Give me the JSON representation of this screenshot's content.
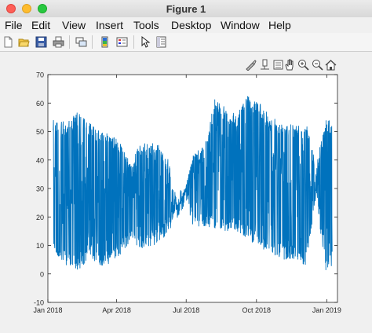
{
  "window": {
    "title": "Figure 1"
  },
  "menubar": {
    "items": [
      "File",
      "Edit",
      "View",
      "Insert",
      "Tools",
      "Desktop",
      "Window",
      "Help"
    ]
  },
  "toolbar": {
    "icons": [
      "new-figure-icon",
      "open-file-icon",
      "save-icon",
      "print-icon",
      "link-plot-icon",
      "insert-colorbar-icon",
      "insert-legend-icon",
      "edit-plot-arrow-icon",
      "property-inspector-icon"
    ]
  },
  "axes_toolbar": {
    "icons": [
      "brush-icon",
      "data-tips-icon",
      "rotate-icon",
      "pan-hand-icon",
      "zoom-in-icon",
      "zoom-out-icon",
      "home-icon"
    ]
  },
  "colors": {
    "series": "#0072bd",
    "figure_bg": "#f0f0f0"
  },
  "chart_data": {
    "type": "line",
    "title": "",
    "xlabel": "",
    "ylabel": "",
    "x_range": [
      "2018-01-01",
      "2019-01-15"
    ],
    "ylim": [
      -10,
      70
    ],
    "yticks": [
      -10,
      0,
      10,
      20,
      30,
      40,
      50,
      60,
      70
    ],
    "xtick_labels": [
      "Jan 2018",
      "Apr 2018",
      "Jul 2018",
      "Oct 2018",
      "Jan 2019"
    ],
    "xtick_dates": [
      "2018-01-01",
      "2018-04-01",
      "2018-07-01",
      "2018-10-01",
      "2019-01-01"
    ],
    "grid": false,
    "legend": "none",
    "series": [
      {
        "color": "#0072bd",
        "envelope": [
          {
            "date": "2018-01-08",
            "low": 7,
            "high": 55
          },
          {
            "date": "2018-01-25",
            "low": 3,
            "high": 53
          },
          {
            "date": "2018-02-10",
            "low": 1,
            "high": 57
          },
          {
            "date": "2018-02-25",
            "low": 6,
            "high": 53
          },
          {
            "date": "2018-03-10",
            "low": 2,
            "high": 50
          },
          {
            "date": "2018-03-25",
            "low": 4,
            "high": 49
          },
          {
            "date": "2018-04-10",
            "low": 8,
            "high": 45
          },
          {
            "date": "2018-04-20",
            "low": 12,
            "high": 38
          },
          {
            "date": "2018-05-01",
            "low": 9,
            "high": 46
          },
          {
            "date": "2018-05-15",
            "low": 9,
            "high": 46
          },
          {
            "date": "2018-05-28",
            "low": 12,
            "high": 46
          },
          {
            "date": "2018-06-08",
            "low": 14,
            "high": 40
          },
          {
            "date": "2018-06-20",
            "low": 24,
            "high": 24
          },
          {
            "date": "2018-06-30",
            "low": 26,
            "high": 30
          },
          {
            "date": "2018-07-10",
            "low": 16,
            "high": 42
          },
          {
            "date": "2018-07-25",
            "low": 16,
            "high": 45
          },
          {
            "date": "2018-08-08",
            "low": 16,
            "high": 62
          },
          {
            "date": "2018-08-22",
            "low": 15,
            "high": 58
          },
          {
            "date": "2018-09-05",
            "low": 15,
            "high": 56
          },
          {
            "date": "2018-09-20",
            "low": 12,
            "high": 63
          },
          {
            "date": "2018-10-05",
            "low": 9,
            "high": 60
          },
          {
            "date": "2018-10-20",
            "low": 7,
            "high": 55
          },
          {
            "date": "2018-11-05",
            "low": 5,
            "high": 54
          },
          {
            "date": "2018-11-20",
            "low": 5,
            "high": 52
          },
          {
            "date": "2018-12-05",
            "low": 3,
            "high": 53
          },
          {
            "date": "2018-12-18",
            "low": 28,
            "high": 38
          },
          {
            "date": "2018-12-30",
            "low": 1,
            "high": 54
          },
          {
            "date": "2019-01-08",
            "low": 3,
            "high": 54
          }
        ]
      }
    ]
  }
}
